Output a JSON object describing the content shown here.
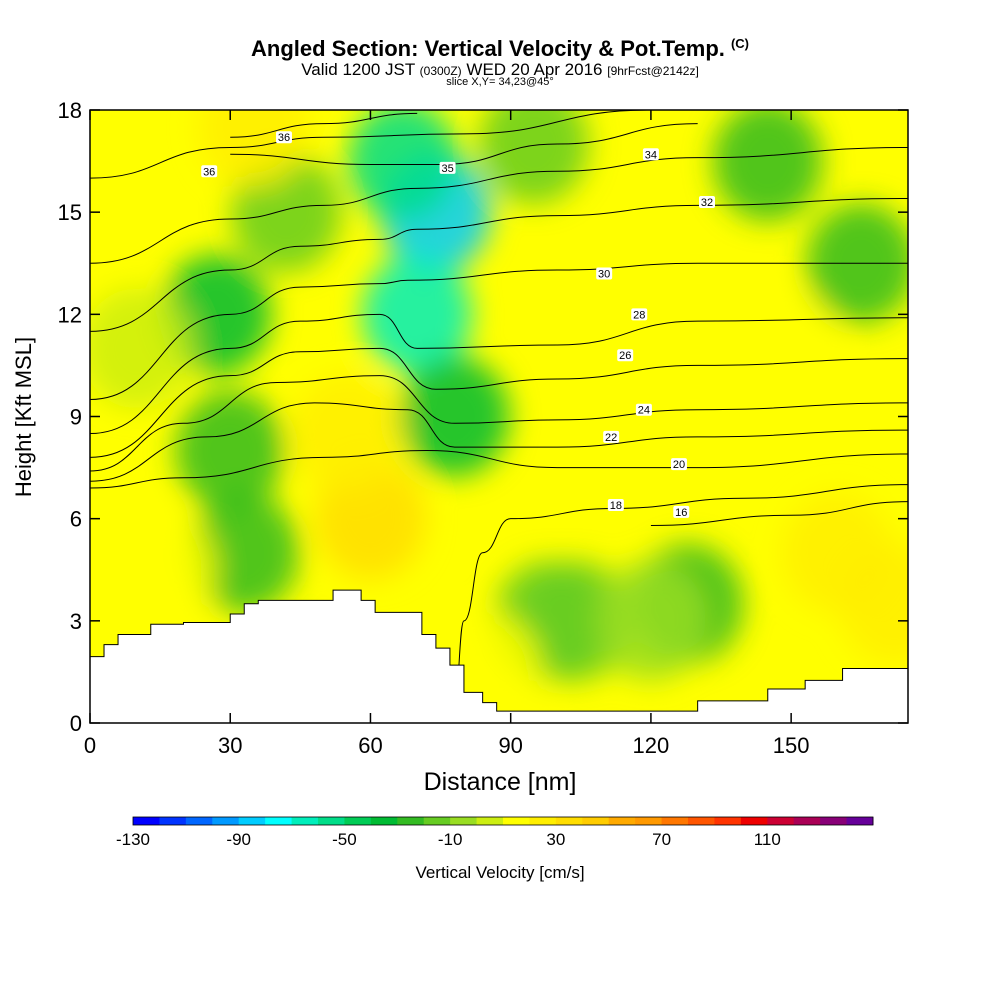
{
  "title": "Angled Section: Vertical Velocity & Pot.Temp.",
  "title_mark": "(C)",
  "subtitle_main": "Valid 1200 JST",
  "subtitle_z": "(0300Z)",
  "subtitle_date": "WED 20 Apr 2016",
  "subtitle_fcst": "[9hrFcst@2142z]",
  "slice": "slice X,Y= 34,23@45°",
  "chart_data": {
    "type": "heatmap",
    "xlabel": "Distance [nm]",
    "ylabel": "Height [Kft MSL]",
    "xlim": [
      0,
      175
    ],
    "ylim": [
      0,
      18
    ],
    "x_ticks": [
      0,
      30,
      60,
      90,
      120,
      150
    ],
    "y_ticks": [
      0,
      3,
      6,
      9,
      12,
      15,
      18
    ],
    "colorbar": {
      "label": "Vertical Velocity [cm/s]",
      "range": [
        -130,
        150
      ],
      "step": 10,
      "tick_labels": [
        -130,
        -90,
        -50,
        -10,
        30,
        70,
        110
      ],
      "colors": [
        "#0000ff",
        "#0033ff",
        "#0066ff",
        "#0099ff",
        "#00ccff",
        "#00ffff",
        "#00eebb",
        "#00dd88",
        "#00cc55",
        "#00bb33",
        "#33bb22",
        "#66cc22",
        "#99dd22",
        "#ccee11",
        "#ffff00",
        "#ffee00",
        "#ffdd00",
        "#ffcc00",
        "#ffaa00",
        "#ff9900",
        "#ff7700",
        "#ff5500",
        "#ff3300",
        "#ee0000",
        "#cc0033",
        "#aa0055",
        "#880077",
        "#660099"
      ]
    },
    "velocity_field": [
      {
        "x": 27,
        "y": 12.0,
        "value": -40
      },
      {
        "x": 30,
        "y": 8.0,
        "value": -30
      },
      {
        "x": 33,
        "y": 5.0,
        "value": -30
      },
      {
        "x": 42,
        "y": 15.0,
        "value": -20
      },
      {
        "x": 35,
        "y": 17.5,
        "value": 20
      },
      {
        "x": 60,
        "y": 6.0,
        "value": 30
      },
      {
        "x": 55,
        "y": 8.5,
        "value": 20
      },
      {
        "x": 74,
        "y": 15.0,
        "value": -90
      },
      {
        "x": 67,
        "y": 16.5,
        "value": -60
      },
      {
        "x": 70,
        "y": 12.0,
        "value": -70
      },
      {
        "x": 78,
        "y": 9.0,
        "value": -40
      },
      {
        "x": 98,
        "y": 3.0,
        "value": -20
      },
      {
        "x": 104,
        "y": 3.0,
        "value": -20
      },
      {
        "x": 128,
        "y": 3.5,
        "value": -30
      },
      {
        "x": 120,
        "y": 3.0,
        "value": -10
      },
      {
        "x": 95,
        "y": 17.0,
        "value": -20
      },
      {
        "x": 145,
        "y": 16.5,
        "value": -30
      },
      {
        "x": 165,
        "y": 13.5,
        "value": -30
      },
      {
        "x": 160,
        "y": 5.0,
        "value": 20
      },
      {
        "x": 172,
        "y": 3.5,
        "value": 20
      },
      {
        "x": 85,
        "y": 1.5,
        "value": 10
      },
      {
        "x": 15,
        "y": 4.5,
        "value": 10
      },
      {
        "x": 148,
        "y": 11.0,
        "value": 10
      },
      {
        "x": 10,
        "y": 11.0,
        "value": 0
      }
    ],
    "theta_contours": [
      {
        "value": 16,
        "points": [
          [
            120,
            5.8
          ],
          [
            150,
            6.1
          ],
          [
            175,
            6.5
          ]
        ],
        "label_at": [
          126.5,
          6.2
        ]
      },
      {
        "value": 18,
        "points": [
          [
            78,
            0.7
          ],
          [
            80,
            3.0
          ],
          [
            84,
            5.0
          ],
          [
            90,
            6.0
          ],
          [
            112,
            6.3
          ],
          [
            140,
            6.6
          ],
          [
            175,
            7.0
          ]
        ],
        "label_at": [
          112.5,
          6.4
        ]
      },
      {
        "value": 20,
        "points": [
          [
            0,
            6.9
          ],
          [
            20,
            7.2
          ],
          [
            50,
            7.8
          ],
          [
            72,
            8.0
          ],
          [
            100,
            7.5
          ],
          [
            130,
            7.5
          ],
          [
            175,
            7.9
          ]
        ],
        "label_at": [
          126,
          7.6
        ]
      },
      {
        "value": 22,
        "points": [
          [
            0,
            7.1
          ],
          [
            25,
            8.4
          ],
          [
            48,
            9.4
          ],
          [
            68,
            9.2
          ],
          [
            78,
            8.1
          ],
          [
            100,
            8.1
          ],
          [
            130,
            8.4
          ],
          [
            175,
            8.6
          ]
        ],
        "label_at": [
          111.5,
          8.4
        ]
      },
      {
        "value": 24,
        "points": [
          [
            0,
            7.4
          ],
          [
            20,
            8.8
          ],
          [
            40,
            10.0
          ],
          [
            62,
            10.2
          ],
          [
            78,
            8.8
          ],
          [
            100,
            8.9
          ],
          [
            130,
            9.2
          ],
          [
            175,
            9.4
          ]
        ],
        "label_at": [
          118.5,
          9.2
        ]
      },
      {
        "value": 26,
        "points": [
          [
            0,
            7.8
          ],
          [
            30,
            10.2
          ],
          [
            45,
            10.9
          ],
          [
            62,
            11.0
          ],
          [
            74,
            9.8
          ],
          [
            100,
            10.1
          ],
          [
            130,
            10.5
          ],
          [
            175,
            10.7
          ]
        ],
        "label_at": [
          114.5,
          10.8
        ]
      },
      {
        "value": 28,
        "points": [
          [
            0,
            8.5
          ],
          [
            30,
            11.0
          ],
          [
            45,
            11.8
          ],
          [
            62,
            12.0
          ],
          [
            70,
            11.0
          ],
          [
            100,
            11.1
          ],
          [
            130,
            11.8
          ],
          [
            175,
            11.9
          ]
        ],
        "label_at": [
          117.5,
          12.0
        ]
      },
      {
        "value": 30,
        "points": [
          [
            0,
            9.5
          ],
          [
            30,
            12.0
          ],
          [
            45,
            12.8
          ],
          [
            62,
            12.9
          ],
          [
            68,
            13.0
          ],
          [
            100,
            13.3
          ],
          [
            130,
            13.5
          ],
          [
            175,
            13.5
          ]
        ],
        "label_at": [
          110,
          13.2
        ]
      },
      {
        "value": 32,
        "points": [
          [
            0,
            11.5
          ],
          [
            30,
            13.3
          ],
          [
            45,
            14.0
          ],
          [
            62,
            14.2
          ],
          [
            70,
            14.5
          ],
          [
            100,
            14.9
          ],
          [
            130,
            15.2
          ],
          [
            175,
            15.4
          ]
        ],
        "label_at": [
          132,
          15.3
        ]
      },
      {
        "value": 34,
        "points": [
          [
            0,
            13.5
          ],
          [
            30,
            14.8
          ],
          [
            50,
            15.2
          ],
          [
            70,
            15.7
          ],
          [
            100,
            16.2
          ],
          [
            130,
            16.6
          ],
          [
            175,
            16.9
          ]
        ],
        "label_at": [
          120,
          16.7
        ]
      },
      {
        "value": 35,
        "points": [
          [
            30,
            16.7
          ],
          [
            60,
            16.4
          ],
          [
            75,
            16.4
          ],
          [
            100,
            17.0
          ],
          [
            130,
            17.6
          ]
        ],
        "label_at": [
          76.5,
          16.3
        ]
      },
      {
        "value": 36,
        "points": [
          [
            0,
            16.0
          ],
          [
            30,
            16.9
          ],
          [
            50,
            17.2
          ],
          [
            80,
            17.3
          ],
          [
            120,
            18.0
          ]
        ],
        "label_at": [
          25.5,
          16.2
        ]
      },
      {
        "value": 36,
        "points": [
          [
            30,
            17.2
          ],
          [
            50,
            17.6
          ],
          [
            70,
            17.9
          ]
        ],
        "label_at": [
          41.5,
          17.2
        ]
      }
    ],
    "terrain": [
      [
        0,
        1.95
      ],
      [
        3,
        1.95
      ],
      [
        3,
        2.3
      ],
      [
        6,
        2.3
      ],
      [
        6,
        2.6
      ],
      [
        13,
        2.6
      ],
      [
        13,
        2.9
      ],
      [
        20,
        2.9
      ],
      [
        20,
        2.95
      ],
      [
        30,
        2.95
      ],
      [
        30,
        3.2
      ],
      [
        33,
        3.2
      ],
      [
        33,
        3.5
      ],
      [
        36,
        3.5
      ],
      [
        36,
        3.6
      ],
      [
        52,
        3.6
      ],
      [
        52,
        3.9
      ],
      [
        58,
        3.9
      ],
      [
        58,
        3.6
      ],
      [
        61,
        3.6
      ],
      [
        61,
        3.25
      ],
      [
        71,
        3.25
      ],
      [
        71,
        2.6
      ],
      [
        74,
        2.6
      ],
      [
        74,
        2.2
      ],
      [
        77,
        2.2
      ],
      [
        77,
        1.7
      ],
      [
        80,
        1.7
      ],
      [
        80,
        0.9
      ],
      [
        84,
        0.9
      ],
      [
        84,
        0.6
      ],
      [
        87,
        0.6
      ],
      [
        87,
        0.35
      ],
      [
        130,
        0.35
      ],
      [
        130,
        0.65
      ],
      [
        145,
        0.65
      ],
      [
        145,
        1.0
      ],
      [
        153,
        1.0
      ],
      [
        153,
        1.25
      ],
      [
        161,
        1.25
      ],
      [
        161,
        1.6
      ],
      [
        175,
        1.6
      ]
    ]
  }
}
